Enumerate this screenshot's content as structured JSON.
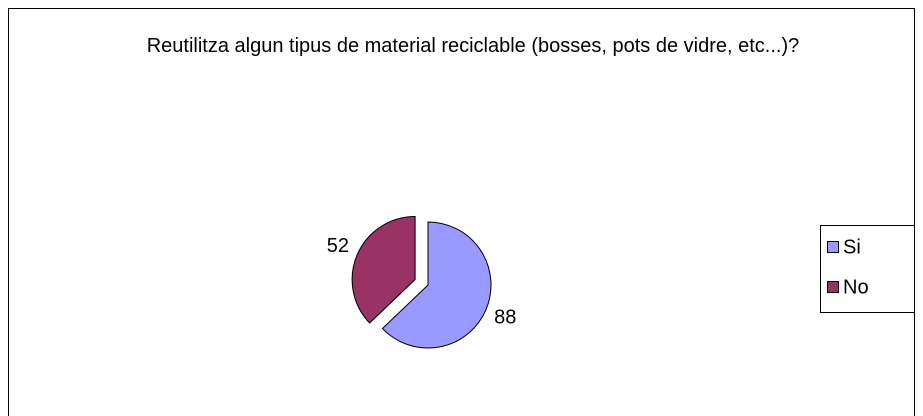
{
  "chart_data": {
    "type": "pie",
    "title": "Reutilitza algun tipus de material reciclable (bosses, pots de vidre, etc...)?",
    "categories": [
      "Si",
      "No"
    ],
    "values": [
      88,
      52
    ],
    "colors": [
      "#9999ff",
      "#993366"
    ],
    "legend": "right"
  }
}
